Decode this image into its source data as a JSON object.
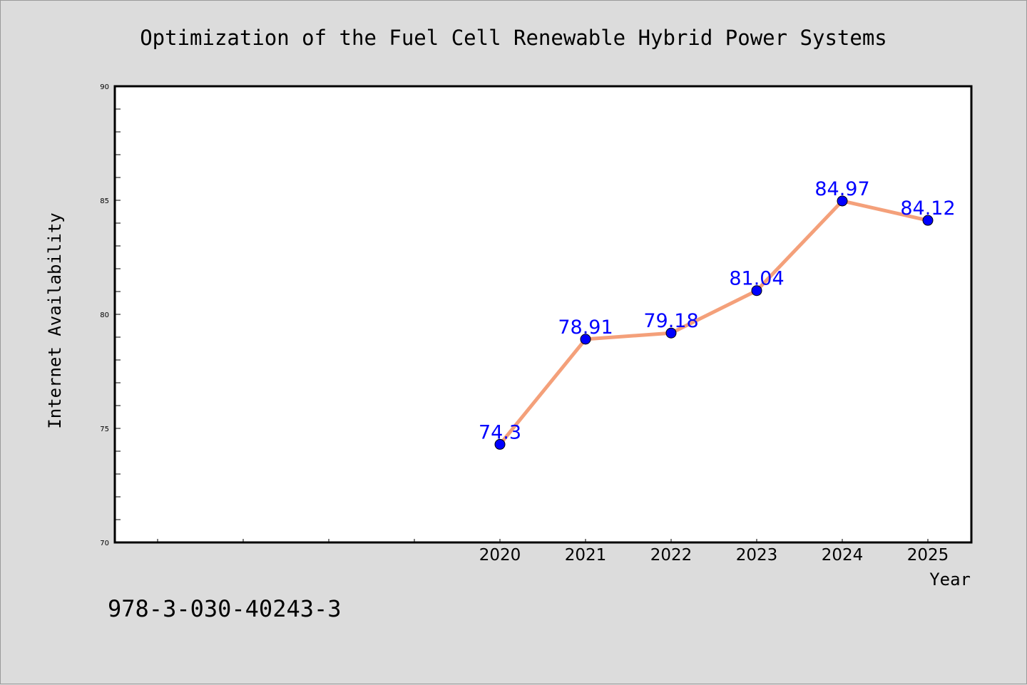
{
  "chart_data": {
    "type": "line",
    "title": "Optimization of the Fuel Cell Renewable Hybrid Power Systems",
    "xlabel": "Year",
    "ylabel": "Internet Availability",
    "categories": [
      "2020",
      "2021",
      "2022",
      "2023",
      "2024",
      "2025"
    ],
    "series": [
      {
        "values": [
          74.3,
          78.91,
          79.18,
          81.04,
          84.97,
          84.12
        ],
        "labels": [
          "74.3",
          "78.91",
          "79.18",
          "81.04",
          "84.97",
          "84.12"
        ],
        "line_color": "#f4a07a",
        "marker_color": "#0000ff"
      }
    ],
    "ylim": [
      70,
      90
    ],
    "yticks": [
      "70",
      "75",
      "80",
      "85",
      "90"
    ],
    "grid": false,
    "legend": "none",
    "label_color": "#0000ff"
  },
  "footer": {
    "isbn": "978-3-030-40243-3"
  }
}
